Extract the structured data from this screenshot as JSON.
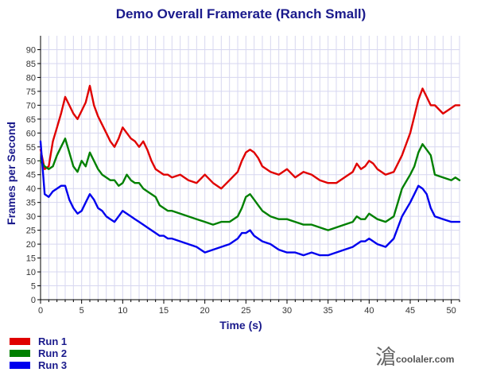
{
  "chart_data": {
    "type": "line",
    "title": "Demo Overall Framerate (Ranch Small)",
    "xlabel": "Time (s)",
    "ylabel": "Frames per Second",
    "xlim": [
      0,
      51
    ],
    "ylim": [
      0,
      95
    ],
    "xticks": [
      0,
      5,
      10,
      15,
      20,
      25,
      30,
      35,
      40,
      45,
      50
    ],
    "yticks": [
      0,
      5,
      10,
      15,
      20,
      25,
      30,
      35,
      40,
      45,
      50,
      55,
      60,
      65,
      70,
      75,
      80,
      85,
      90
    ],
    "grid": true,
    "legend_position": "bottom-left",
    "series": [
      {
        "name": "Run 1",
        "color": "#e00000",
        "x": [
          0,
          0.5,
          1,
          1.5,
          2,
          2.5,
          3,
          3.5,
          4,
          4.5,
          5,
          5.5,
          6,
          6.5,
          7,
          7.5,
          8,
          8.5,
          9,
          9.5,
          10,
          10.5,
          11,
          11.5,
          12,
          12.5,
          13,
          13.5,
          14,
          14.5,
          15,
          15.5,
          16,
          17,
          18,
          19,
          20,
          21,
          22,
          23,
          24,
          24.5,
          25,
          25.5,
          26,
          26.5,
          27,
          28,
          29,
          30,
          31,
          32,
          33,
          34,
          35,
          36,
          37,
          38,
          38.5,
          39,
          39.5,
          40,
          40.5,
          41,
          42,
          43,
          44,
          45,
          45.5,
          46,
          46.5,
          47,
          47.5,
          48,
          49,
          50,
          50.5,
          51
        ],
        "values": [
          54,
          47,
          48,
          57,
          62,
          67,
          73,
          70,
          67,
          65,
          68,
          71,
          77,
          70,
          66,
          63,
          60,
          57,
          55,
          58,
          62,
          60,
          58,
          57,
          55,
          57,
          54,
          50,
          47,
          46,
          45,
          45,
          44,
          45,
          43,
          42,
          45,
          42,
          40,
          43,
          46,
          50,
          53,
          54,
          53,
          51,
          48,
          46,
          45,
          47,
          44,
          46,
          45,
          43,
          42,
          42,
          44,
          46,
          49,
          47,
          48,
          50,
          49,
          47,
          45,
          46,
          52,
          60,
          66,
          72,
          76,
          73,
          70,
          70,
          67,
          69,
          70,
          70
        ]
      },
      {
        "name": "Run 2",
        "color": "#008000",
        "x": [
          0,
          0.5,
          1,
          1.5,
          2,
          2.5,
          3,
          3.5,
          4,
          4.5,
          5,
          5.5,
          6,
          6.5,
          7,
          7.5,
          8,
          8.5,
          9,
          9.5,
          10,
          10.5,
          11,
          11.5,
          12,
          12.5,
          13,
          13.5,
          14,
          14.5,
          15,
          15.5,
          16,
          17,
          18,
          19,
          20,
          21,
          22,
          23,
          24,
          24.5,
          25,
          25.5,
          26,
          26.5,
          27,
          28,
          29,
          30,
          31,
          32,
          33,
          34,
          35,
          36,
          37,
          38,
          38.5,
          39,
          39.5,
          40,
          40.5,
          41,
          42,
          43,
          44,
          45,
          45.5,
          46,
          46.5,
          47,
          47.5,
          48,
          49,
          50,
          50.5,
          51
        ],
        "values": [
          50,
          48,
          47,
          48,
          52,
          55,
          58,
          53,
          48,
          46,
          50,
          48,
          53,
          50,
          47,
          45,
          44,
          43,
          43,
          41,
          42,
          45,
          43,
          42,
          42,
          40,
          39,
          38,
          37,
          34,
          33,
          32,
          32,
          31,
          30,
          29,
          28,
          27,
          28,
          28,
          30,
          33,
          37,
          38,
          36,
          34,
          32,
          30,
          29,
          29,
          28,
          27,
          27,
          26,
          25,
          26,
          27,
          28,
          30,
          29,
          29,
          31,
          30,
          29,
          28,
          30,
          40,
          45,
          48,
          53,
          56,
          54,
          52,
          45,
          44,
          43,
          44,
          43
        ]
      },
      {
        "name": "Run 3",
        "color": "#0000ee",
        "x": [
          0,
          0.5,
          1,
          1.5,
          2,
          2.5,
          3,
          3.5,
          4,
          4.5,
          5,
          5.5,
          6,
          6.5,
          7,
          7.5,
          8,
          8.5,
          9,
          9.5,
          10,
          10.5,
          11,
          11.5,
          12,
          12.5,
          13,
          13.5,
          14,
          14.5,
          15,
          15.5,
          16,
          17,
          18,
          19,
          20,
          21,
          22,
          23,
          24,
          24.5,
          25,
          25.5,
          26,
          26.5,
          27,
          28,
          29,
          30,
          31,
          32,
          33,
          34,
          35,
          36,
          37,
          38,
          38.5,
          39,
          39.5,
          40,
          40.5,
          41,
          42,
          43,
          44,
          45,
          45.5,
          46,
          46.5,
          47,
          47.5,
          48,
          49,
          50,
          50.5,
          51
        ],
        "values": [
          57,
          38,
          37,
          39,
          40,
          41,
          41,
          36,
          33,
          31,
          32,
          35,
          38,
          36,
          33,
          32,
          30,
          29,
          28,
          30,
          32,
          31,
          30,
          29,
          28,
          27,
          26,
          25,
          24,
          23,
          23,
          22,
          22,
          21,
          20,
          19,
          17,
          18,
          19,
          20,
          22,
          24,
          24,
          25,
          23,
          22,
          21,
          20,
          18,
          17,
          17,
          16,
          17,
          16,
          16,
          17,
          18,
          19,
          20,
          21,
          21,
          22,
          21,
          20,
          19,
          22,
          30,
          35,
          38,
          41,
          40,
          38,
          33,
          30,
          29,
          28,
          28,
          28
        ]
      }
    ]
  },
  "watermark": {
    "text": "coolaler.com",
    "glyph": "滄"
  }
}
